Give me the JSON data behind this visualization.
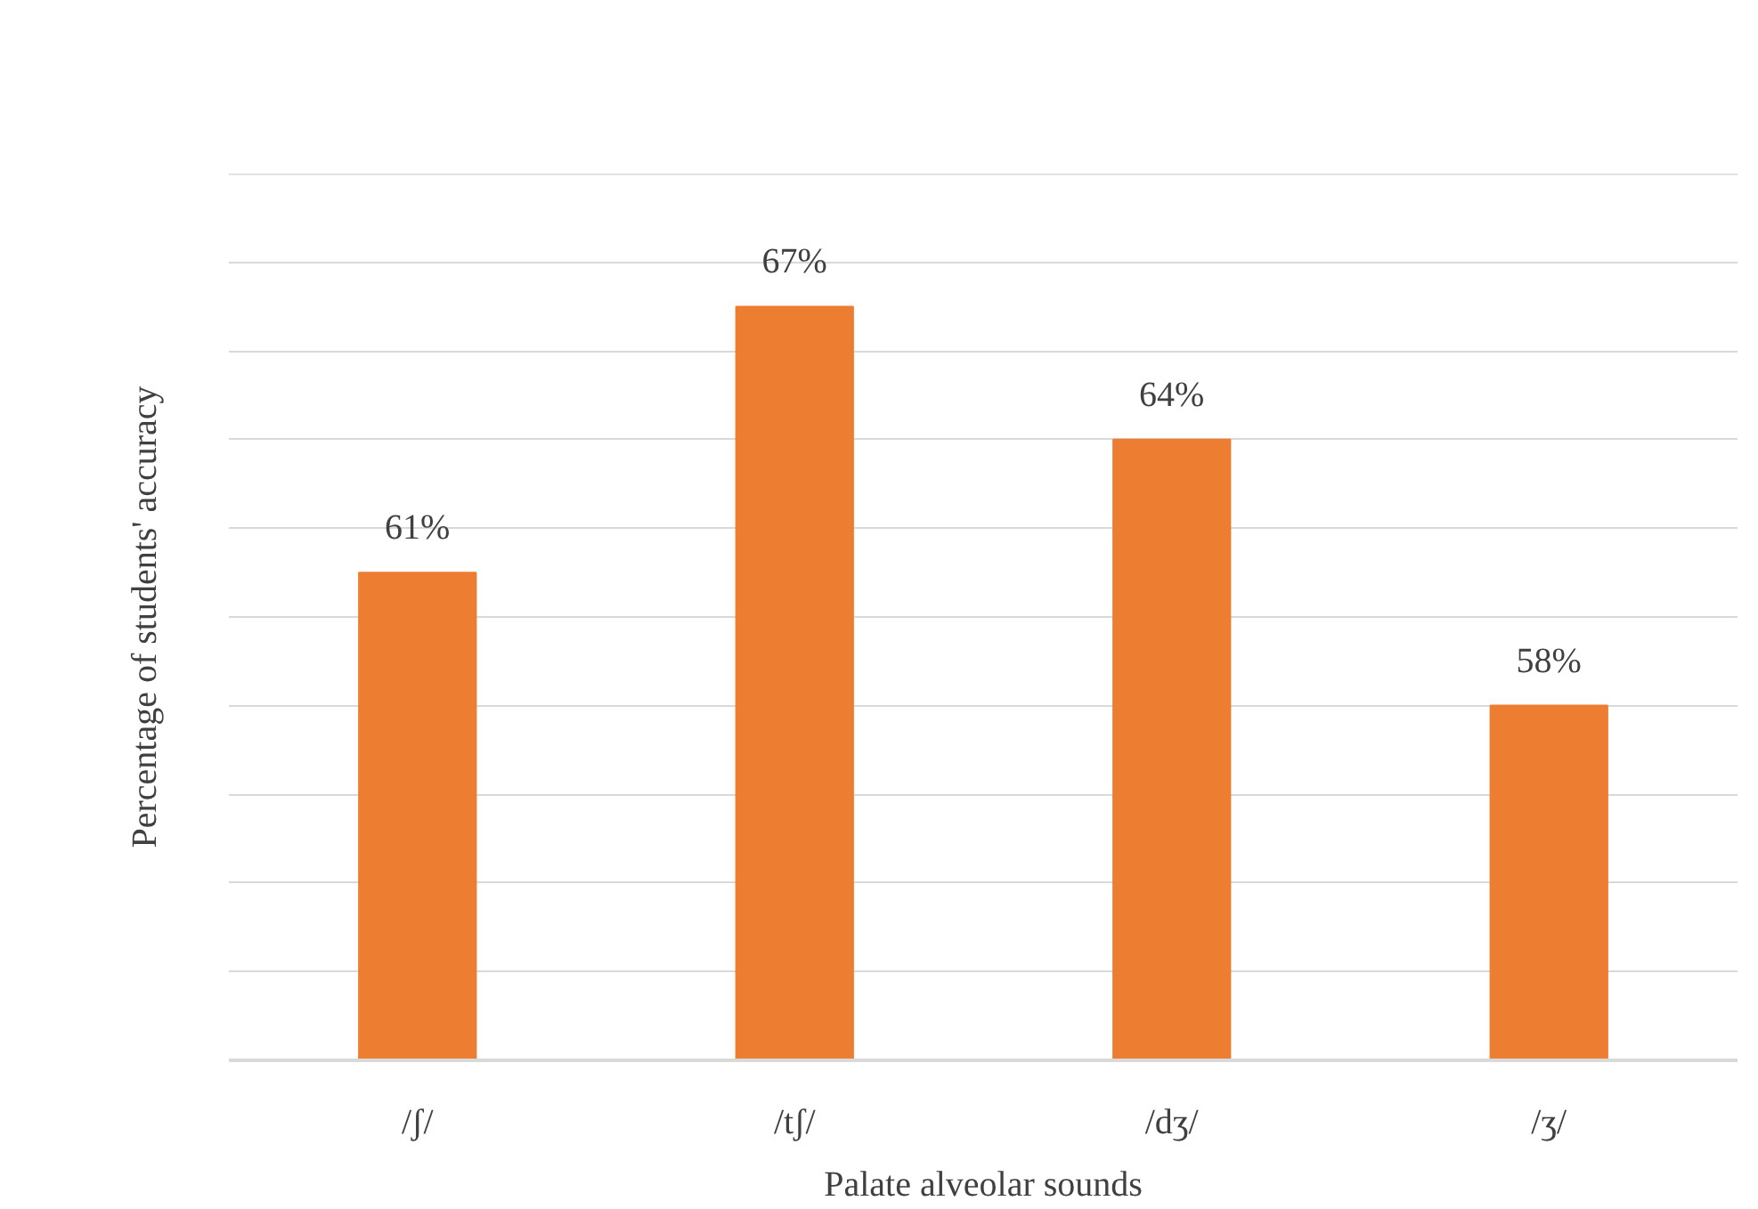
{
  "chart_data": {
    "type": "bar",
    "xlabel": "Palate alveolar sounds",
    "ylabel": "Percentage of students' accuracy",
    "categories": [
      "/ʃ/",
      "/tʃ/",
      "/dʒ/",
      "/ʒ/"
    ],
    "values": [
      61,
      67,
      64,
      58
    ],
    "value_labels": [
      "61%",
      "67%",
      "64%",
      "58%"
    ],
    "color": "#ed7d31",
    "ylim": [
      50,
      70
    ],
    "yticks": [
      {
        "value": 50,
        "label": null
      },
      {
        "value": 52,
        "label": null
      },
      {
        "value": 54,
        "label": null
      },
      {
        "value": 56,
        "label": null
      },
      {
        "value": 58,
        "label": null
      },
      {
        "value": 60,
        "label": null
      },
      {
        "value": 62,
        "label": null
      },
      {
        "value": 64,
        "label": null
      },
      {
        "value": 66,
        "label": null
      },
      {
        "value": 68,
        "label": null
      },
      {
        "value": 70,
        "label": null
      }
    ],
    "grid": "y",
    "tick_labels": "x"
  }
}
